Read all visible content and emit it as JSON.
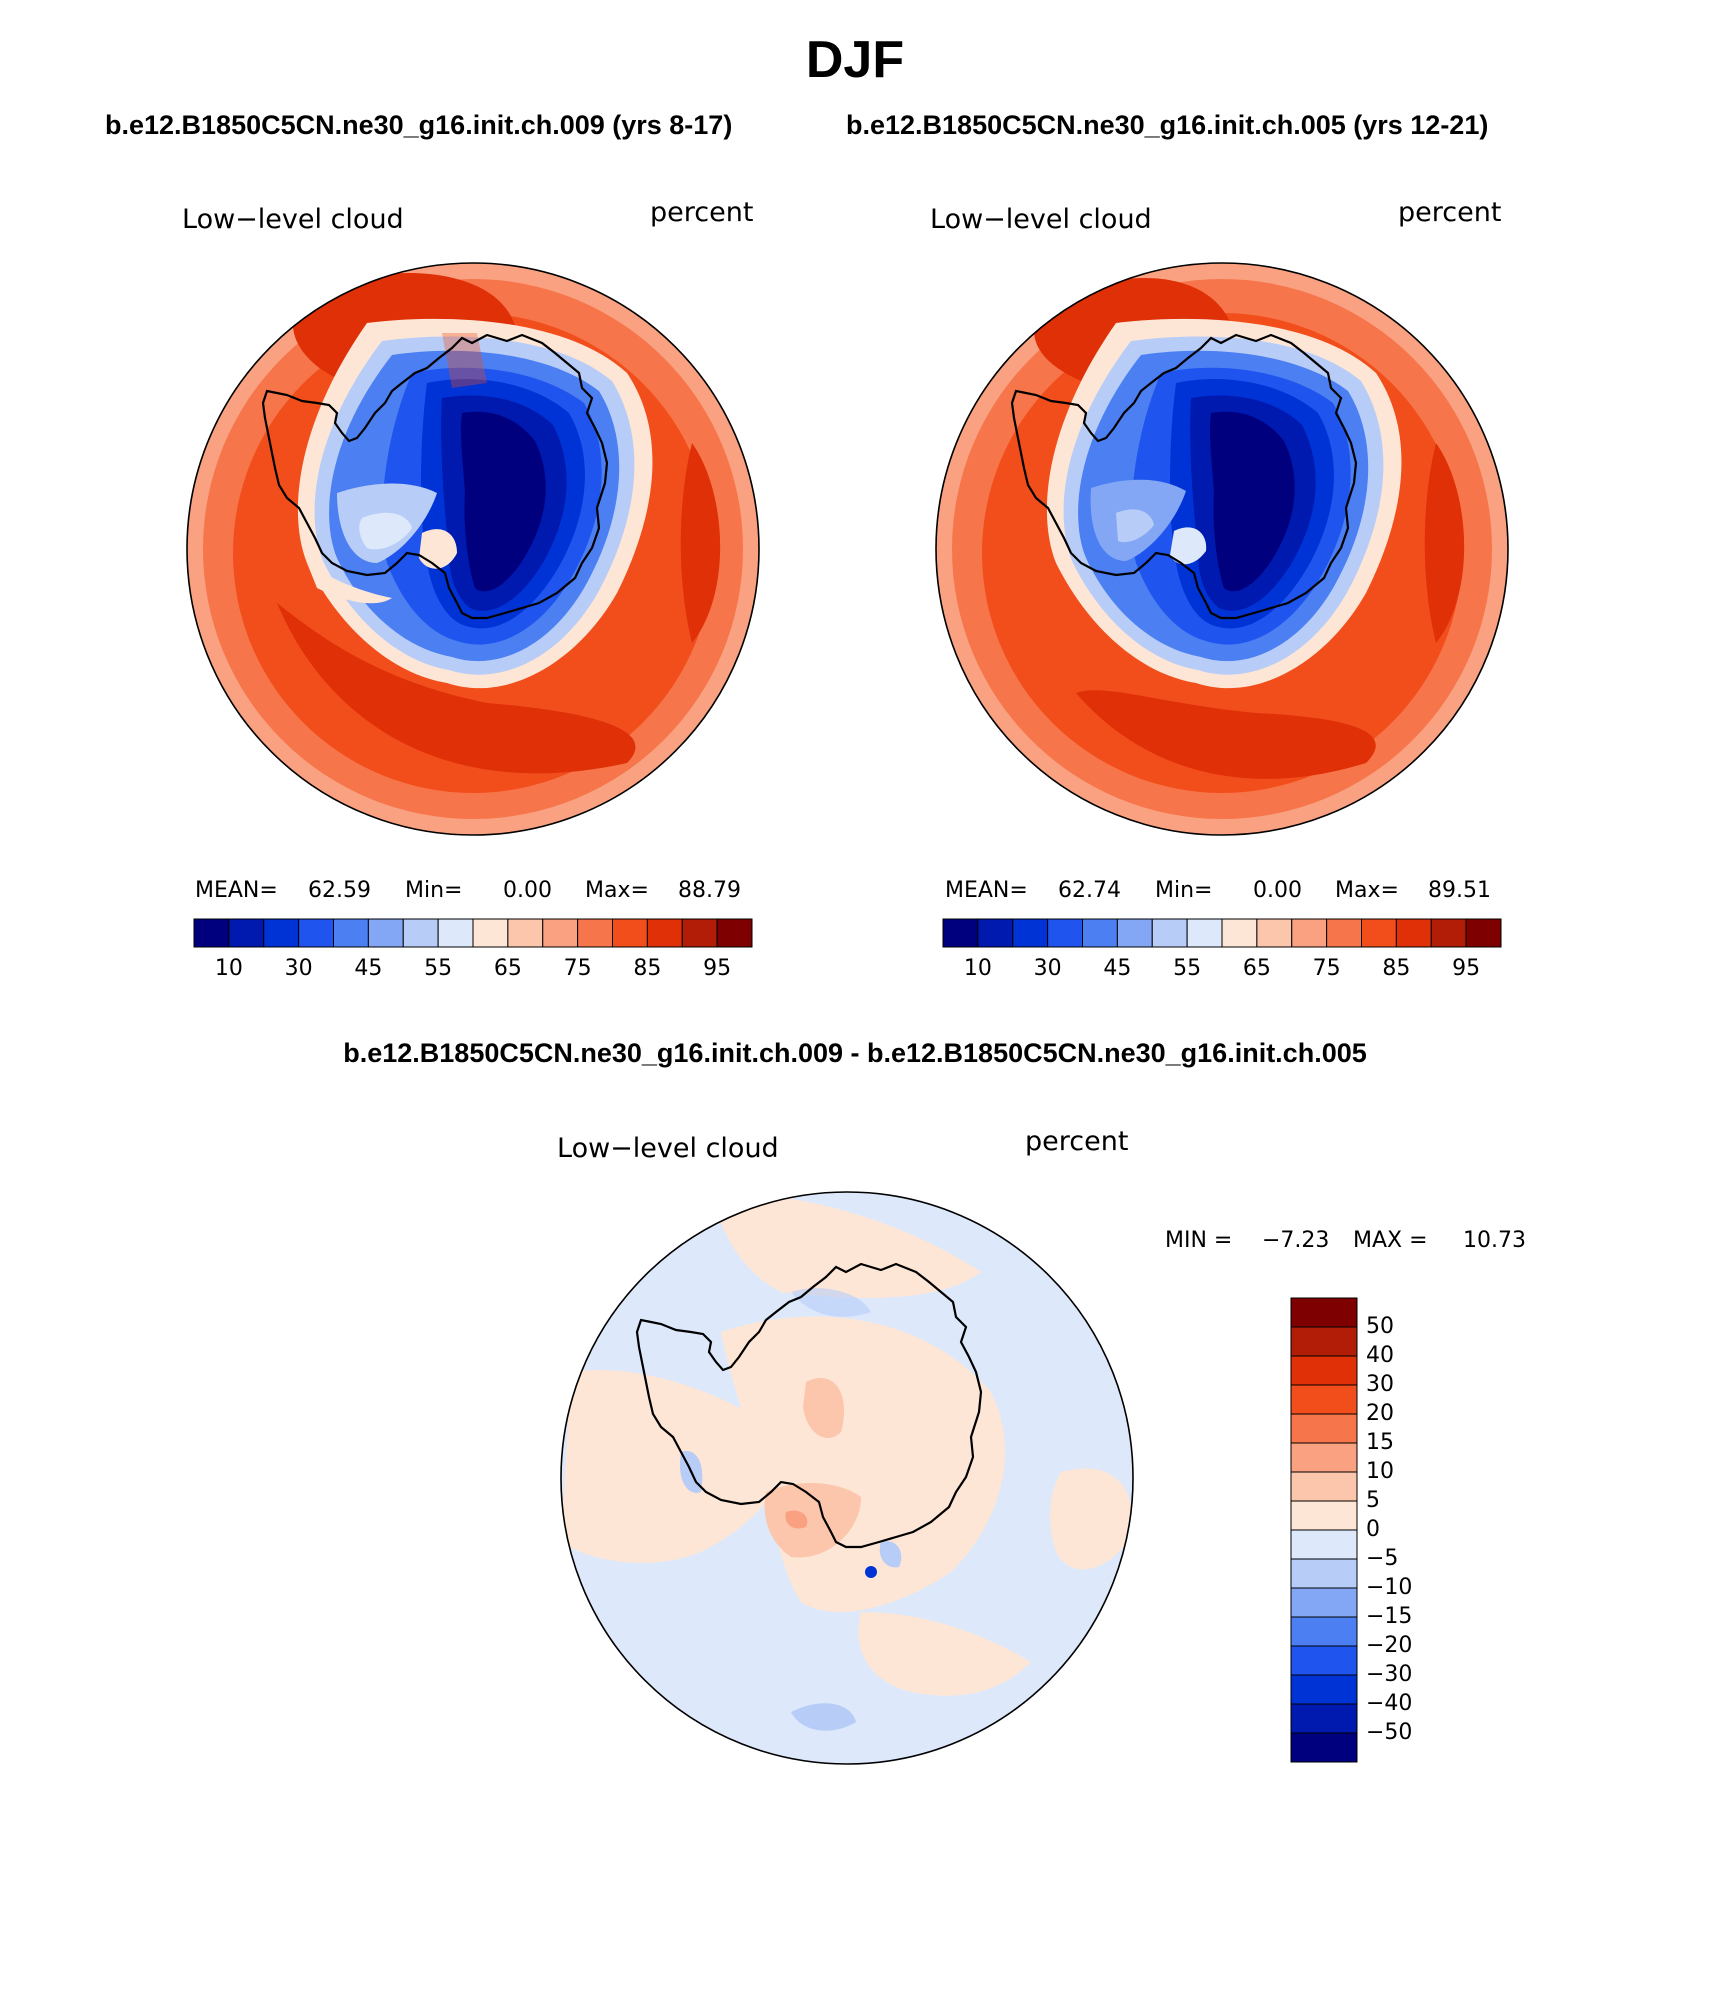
{
  "title": "DJF",
  "top_titles": {
    "left": "b.e12.B1850C5CN.ne30_g16.init.ch.009 (yrs 8-17)",
    "right": "b.e12.B1850C5CN.ne30_g16.init.ch.005 (yrs 12-21)"
  },
  "diff_title": "b.e12.B1850C5CN.ne30_g16.init.ch.009 - b.e12.B1850C5CN.ne30_g16.init.ch.005",
  "panels": [
    {
      "variable": "Low−level cloud",
      "units": "percent",
      "stats": {
        "mean_label": "MEAN=",
        "mean": "62.59",
        "min_label": "Min=",
        "min": "0.00",
        "max_label": "Max=",
        "max": "88.79"
      }
    },
    {
      "variable": "Low−level cloud",
      "units": "percent",
      "stats": {
        "mean_label": "MEAN=",
        "mean": "62.74",
        "min_label": "Min=",
        "min": "0.00",
        "max_label": "Max=",
        "max": "89.51"
      }
    }
  ],
  "diff_panel": {
    "variable": "Low−level cloud",
    "units": "percent",
    "stats": {
      "min_label": "MIN =",
      "min": "−7.23",
      "max_label": "MAX =",
      "max": "10.73"
    }
  },
  "colorbar_abs": {
    "colors": [
      "#00007f",
      "#0019ae",
      "#0033d6",
      "#1f55ee",
      "#4b7ff2",
      "#84a7f5",
      "#b7cdf8",
      "#dde9fb",
      "#fde6d6",
      "#fcc6ac",
      "#f9a180",
      "#f7754a",
      "#f24e1c",
      "#df3007",
      "#b11d06",
      "#7f0000"
    ],
    "tick_labels": [
      "10",
      "30",
      "45",
      "55",
      "65",
      "75",
      "85",
      "95"
    ]
  },
  "colorbar_diff": {
    "colors": [
      "#7f0000",
      "#b11d06",
      "#df3007",
      "#f24e1c",
      "#f7754a",
      "#f9a180",
      "#fcc6ac",
      "#fde6d6",
      "#dde9fb",
      "#b7cdf8",
      "#84a7f5",
      "#4b7ff2",
      "#1f55ee",
      "#0033d6",
      "#0019ae",
      "#00007f"
    ],
    "tick_labels": [
      "50",
      "40",
      "30",
      "20",
      "15",
      "10",
      "5",
      "0",
      "−5",
      "−10",
      "−15",
      "−20",
      "−30",
      "−40",
      "−50"
    ]
  }
}
